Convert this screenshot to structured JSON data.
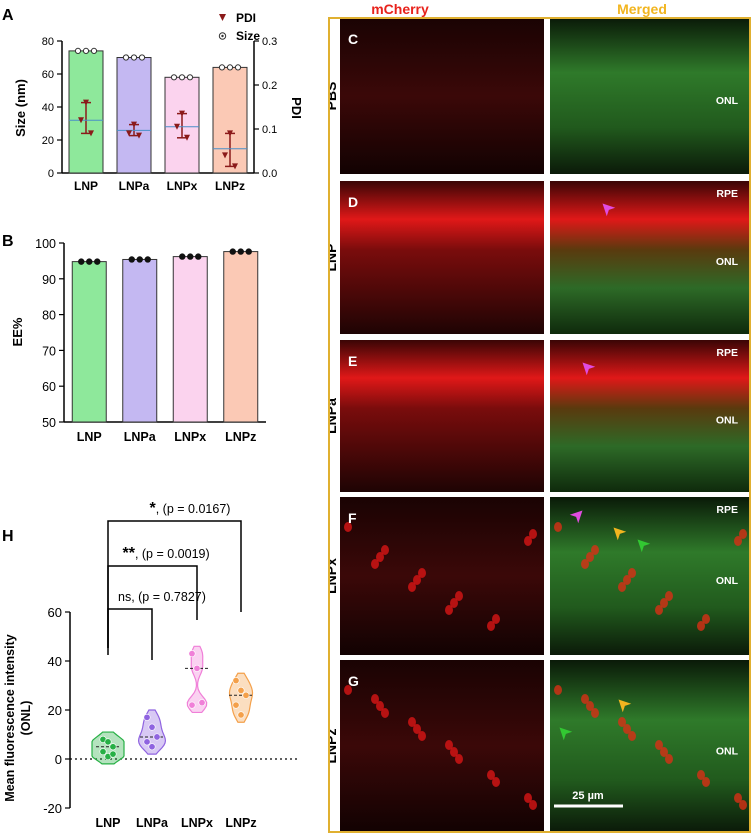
{
  "panels": {
    "A": "A",
    "B": "B",
    "C": "C",
    "D": "D",
    "E": "E",
    "F": "F",
    "G": "G",
    "H": "H"
  },
  "chart_data": [
    {
      "panel": "A",
      "type": "bar",
      "categories": [
        "LNP",
        "LNPa",
        "LNPx",
        "LNPz"
      ],
      "ylabel": "Size (nm)",
      "y2label": "PDI",
      "ylim": [
        0,
        80
      ],
      "y2lim": [
        0,
        0.3
      ],
      "yticks": [
        "0",
        "20",
        "40",
        "60",
        "80"
      ],
      "y2ticks": [
        "0.0",
        "0.1",
        "0.2",
        "0.3"
      ],
      "legend": [
        "PDI",
        "Size"
      ],
      "legend_position": "top-right",
      "bar_colors": [
        "#8ee89b",
        "#c4b8f2",
        "#fbd3ee",
        "#fbc9b5"
      ],
      "series": [
        {
          "name": "Size",
          "values": [
            74,
            70,
            58,
            64
          ],
          "points": [
            [
              74,
              74,
              74
            ],
            [
              70,
              70,
              70
            ],
            [
              58,
              58,
              58
            ],
            [
              64,
              64,
              64
            ]
          ]
        },
        {
          "name": "PDI",
          "values": [
            0.12,
            0.097,
            0.105,
            0.055
          ],
          "points": [
            [
              0.16,
              0.12,
              0.09
            ],
            [
              0.11,
              0.09,
              0.085
            ],
            [
              0.135,
              0.105,
              0.08
            ],
            [
              0.09,
              0.04,
              0.015
            ]
          ]
        }
      ]
    },
    {
      "panel": "B",
      "type": "bar",
      "categories": [
        "LNP",
        "LNPa",
        "LNPx",
        "LNPz"
      ],
      "ylabel": "EE%",
      "ylim": [
        50,
        100
      ],
      "yticks": [
        "50",
        "60",
        "70",
        "80",
        "90",
        "100"
      ],
      "bar_colors": [
        "#8ee89b",
        "#c4b8f2",
        "#fbd3ee",
        "#fbc9b5"
      ],
      "values": [
        94.8,
        95.4,
        96.2,
        97.6
      ],
      "points": [
        [
          94.8,
          94.8,
          94.8
        ],
        [
          95.4,
          95.4,
          95.4
        ],
        [
          96.2,
          96.2,
          96.2
        ],
        [
          97.6,
          97.6,
          97.6
        ]
      ]
    },
    {
      "panel": "H",
      "type": "violin",
      "categories": [
        "LNP",
        "LNPa",
        "LNPx",
        "LNPz"
      ],
      "ylabel": "Mean fluorescence intensity\n(ONL)",
      "ylim": [
        -20,
        60
      ],
      "yticks": [
        "-20",
        "0",
        "20",
        "40",
        "60"
      ],
      "colors": [
        "#27b045",
        "#8f63e0",
        "#f07fd8",
        "#f4a04a"
      ],
      "series": [
        {
          "name": "LNP",
          "points": [
            8,
            7,
            5,
            3,
            1,
            2
          ]
        },
        {
          "name": "LNPa",
          "points": [
            17,
            13,
            9,
            7,
            5
          ]
        },
        {
          "name": "LNPx",
          "points": [
            43,
            37,
            23,
            22
          ]
        },
        {
          "name": "LNPz",
          "points": [
            32,
            28,
            26,
            22,
            18
          ]
        }
      ],
      "annotations": [
        {
          "stars": "*",
          "text": ", (p = 0.0167)"
        },
        {
          "stars": "**",
          "text": ", (p = 0.0019)"
        },
        {
          "stars": "ns",
          "text": ", (p = 0.7827)"
        }
      ]
    }
  ],
  "micro": {
    "col_headers": [
      "mCherry",
      "Merged"
    ],
    "rows": [
      {
        "panel": "C",
        "label": "PBS",
        "tags": [
          "ONL"
        ]
      },
      {
        "panel": "D",
        "label": "LNP",
        "tags": [
          "RPE",
          "ONL"
        ]
      },
      {
        "panel": "E",
        "label": "LNPa",
        "tags": [
          "RPE",
          "ONL"
        ]
      },
      {
        "panel": "F",
        "label": "LNPx",
        "tags": [
          "RPE",
          "ONL"
        ]
      },
      {
        "panel": "G",
        "label": "LNPz",
        "tags": [
          "ONL"
        ]
      }
    ],
    "scale_bar": "25 µm",
    "colors": {
      "header_red": "#e8231c",
      "header_gold": "#f2b51f",
      "frame": "#e0b030"
    }
  }
}
